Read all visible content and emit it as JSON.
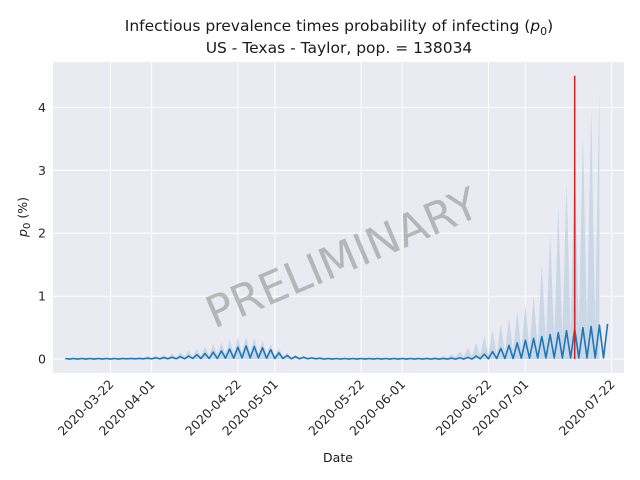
{
  "chart_data": {
    "type": "line",
    "title_main": "Infectious prevalence times probability of infecting (",
    "title_p": "p",
    "title_sub": "0",
    "title_close": ")",
    "subtitle": "US - Texas - Taylor, pop. = 138034",
    "xlabel": "Date",
    "ylabel_p": "p",
    "ylabel_sub": "0",
    "ylabel_rest": " (%)",
    "watermark": "PRELIMINARY",
    "x_start": "2020-03-08",
    "x_end": "2020-07-25",
    "ylim": [
      -0.22,
      4.72
    ],
    "y_ticks": [
      0,
      1,
      2,
      3,
      4
    ],
    "x_ticks": [
      "2020-03-22",
      "2020-04-01",
      "2020-04-22",
      "2020-05-01",
      "2020-05-22",
      "2020-06-01",
      "2020-06-22",
      "2020-07-01",
      "2020-07-22"
    ],
    "vline": {
      "date": "2020-07-13",
      "y_range": [
        0,
        4.5
      ],
      "color": "#d62728"
    },
    "series": {
      "name": "p0",
      "color": "#1f77b4",
      "band_color": "#c9d7e6",
      "start_date": "2020-03-11",
      "values": [
        0.01,
        0,
        0.01,
        0,
        0.01,
        0,
        0.01,
        0,
        0.01,
        0,
        0.01,
        0,
        0.01,
        0,
        0.01,
        0.005,
        0.01,
        0.005,
        0.01,
        0.005,
        0.015,
        0.005,
        0.02,
        0.005,
        0.025,
        0.005,
        0.03,
        0.005,
        0.04,
        0.005,
        0.05,
        0.01,
        0.07,
        0.01,
        0.09,
        0.01,
        0.11,
        0.01,
        0.13,
        0.015,
        0.16,
        0.015,
        0.19,
        0.02,
        0.21,
        0.02,
        0.2,
        0.02,
        0.18,
        0.015,
        0.15,
        0.01,
        0.1,
        0.01,
        0.06,
        0.005,
        0.04,
        0.005,
        0.03,
        0.005,
        0.02,
        0.005,
        0.015,
        0,
        0.01,
        0,
        0.01,
        0,
        0.01,
        0,
        0.01,
        0,
        0.01,
        0,
        0.01,
        0,
        0.01,
        0,
        0.01,
        0,
        0.01,
        0,
        0.01,
        0,
        0.01,
        0,
        0.01,
        0,
        0.01,
        0,
        0.01,
        0,
        0.01,
        0,
        0.015,
        0,
        0.02,
        0,
        0.03,
        0,
        0.05,
        0.005,
        0.08,
        0.005,
        0.12,
        0.01,
        0.17,
        0.01,
        0.22,
        0.01,
        0.26,
        0.015,
        0.3,
        0.015,
        0.33,
        0.02,
        0.36,
        0.02,
        0.39,
        0.02,
        0.42,
        0.02,
        0.45,
        0.02,
        0.48,
        0.02,
        0.5,
        0.02,
        0.52,
        0.02,
        0.54,
        0.02,
        0.56
      ],
      "band_upper": [
        0.02,
        0.01,
        0.02,
        0.01,
        0.02,
        0.01,
        0.02,
        0.01,
        0.02,
        0.01,
        0.02,
        0.01,
        0.02,
        0.01,
        0.03,
        0.01,
        0.03,
        0.01,
        0.04,
        0.01,
        0.05,
        0.01,
        0.06,
        0.02,
        0.07,
        0.02,
        0.09,
        0.02,
        0.11,
        0.03,
        0.14,
        0.03,
        0.17,
        0.04,
        0.2,
        0.05,
        0.24,
        0.06,
        0.27,
        0.07,
        0.31,
        0.08,
        0.34,
        0.09,
        0.36,
        0.09,
        0.34,
        0.08,
        0.3,
        0.07,
        0.24,
        0.05,
        0.17,
        0.04,
        0.1,
        0.02,
        0.07,
        0.02,
        0.05,
        0.01,
        0.03,
        0.01,
        0.02,
        0.01,
        0.02,
        0.01,
        0.02,
        0.01,
        0.02,
        0.01,
        0.02,
        0.01,
        0.02,
        0.01,
        0.02,
        0.01,
        0.02,
        0.01,
        0.02,
        0.01,
        0.02,
        0.01,
        0.02,
        0.01,
        0.02,
        0.01,
        0.02,
        0.01,
        0.03,
        0.01,
        0.04,
        0.01,
        0.05,
        0.02,
        0.08,
        0.03,
        0.12,
        0.04,
        0.18,
        0.05,
        0.26,
        0.06,
        0.36,
        0.07,
        0.46,
        0.08,
        0.56,
        0.1,
        0.66,
        0.12,
        0.76,
        0.14,
        0.86,
        0.17,
        1.0,
        0.2,
        1.5,
        0.25,
        2.0,
        0.3,
        2.4,
        0.35,
        2.8,
        0.4,
        3.2,
        0.45,
        3.6,
        0.5,
        4.0,
        0.55,
        4.3
      ]
    }
  }
}
